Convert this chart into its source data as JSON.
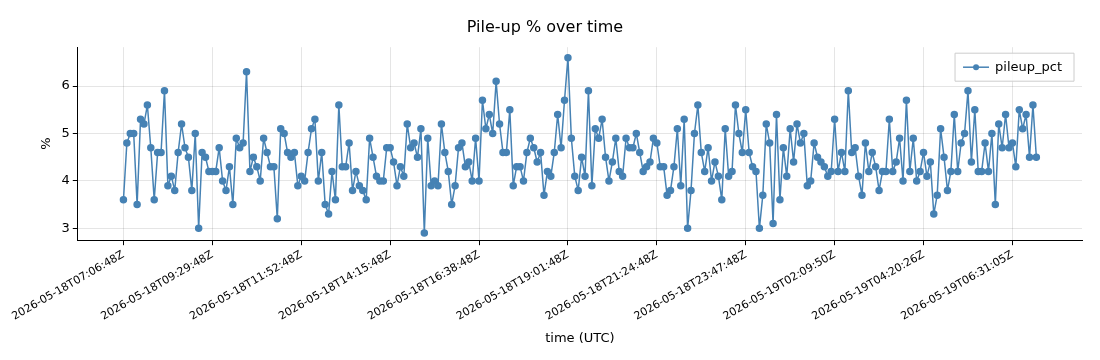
{
  "chart_data": {
    "type": "line",
    "title": "Pile-up % over time",
    "xlabel": "time (UTC)",
    "ylabel": "%",
    "categories": [
      "2026-05-18T07:06:48Z",
      null,
      null,
      null,
      null,
      null,
      null,
      null,
      null,
      null,
      null,
      null,
      null,
      null,
      null,
      null,
      null,
      null,
      null,
      null,
      null,
      null,
      null,
      null,
      null,
      null,
      "2026-05-18T09:29:48Z",
      null,
      null,
      null,
      null,
      null,
      null,
      null,
      null,
      null,
      null,
      null,
      null,
      null,
      null,
      null,
      null,
      null,
      null,
      null,
      null,
      null,
      null,
      null,
      null,
      null,
      "2026-05-18T11:52:48Z",
      null,
      null,
      null,
      null,
      null,
      null,
      null,
      null,
      null,
      null,
      null,
      null,
      null,
      null,
      null,
      null,
      null,
      null,
      null,
      null,
      null,
      null,
      null,
      null,
      null,
      "2026-05-18T14:15:48Z",
      null,
      null,
      null,
      null,
      null,
      null,
      null,
      null,
      null,
      null,
      null,
      null,
      null,
      null,
      null,
      null,
      null,
      null,
      null,
      null,
      null,
      null,
      null,
      null,
      null,
      "2026-05-18T16:38:48Z",
      null,
      null,
      null,
      null,
      null,
      null,
      null,
      null,
      null,
      null,
      null,
      null,
      null,
      null,
      null,
      null,
      null,
      null,
      null,
      null,
      null,
      null,
      null,
      null,
      null,
      "2026-05-18T19:01:48Z",
      null,
      null,
      null,
      null,
      null,
      null,
      null,
      null,
      null,
      null,
      null,
      null,
      null,
      null,
      null,
      null,
      null,
      null,
      null,
      null,
      null,
      null,
      null,
      null,
      null,
      "2026-05-18T21:24:48Z",
      null,
      null,
      null,
      null,
      null,
      null,
      null,
      null,
      null,
      null,
      null,
      null,
      null,
      null,
      null,
      null,
      null,
      null,
      null,
      null,
      null,
      null,
      null,
      null,
      null,
      "2026-05-18T23:47:48Z",
      null,
      null,
      null,
      null,
      null,
      null,
      null,
      null,
      null,
      null,
      null,
      null,
      null,
      null,
      null,
      null,
      null,
      null,
      null,
      null,
      null,
      null,
      null,
      null,
      null,
      "2026-05-19T02:09:50Z",
      null,
      null,
      null,
      null,
      null,
      null,
      null,
      null,
      null,
      null,
      null,
      null,
      null,
      null,
      null,
      null,
      null,
      null,
      null,
      null,
      null,
      null,
      null,
      null,
      null,
      "2026-05-19T04:20:26Z",
      null,
      null,
      null,
      null,
      null,
      null,
      null,
      null,
      null,
      null,
      null,
      null,
      null,
      null,
      null,
      null,
      null,
      null,
      null,
      null,
      null,
      null,
      null,
      null,
      null,
      "2026-05-19T06:31:05Z",
      null,
      null,
      null,
      null,
      null,
      null,
      null
    ],
    "series": [
      {
        "name": "pileup_pct",
        "color": "#4682b4",
        "values": [
          3.6,
          4.8,
          5.0,
          5.0,
          3.5,
          5.3,
          5.2,
          5.6,
          4.7,
          3.6,
          4.6,
          4.6,
          5.9,
          3.9,
          4.1,
          3.8,
          4.6,
          5.2,
          4.7,
          4.5,
          3.8,
          5.0,
          3.0,
          4.6,
          4.5,
          4.2,
          4.2,
          4.2,
          4.7,
          4.0,
          3.8,
          4.3,
          3.5,
          4.9,
          4.7,
          4.8,
          6.3,
          4.2,
          4.5,
          4.3,
          4.0,
          4.9,
          4.6,
          4.3,
          4.3,
          3.2,
          5.1,
          5.0,
          4.6,
          4.5,
          4.6,
          3.9,
          4.1,
          4.0,
          4.6,
          5.1,
          5.3,
          4.0,
          4.6,
          3.5,
          3.3,
          4.2,
          3.6,
          5.6,
          4.3,
          4.3,
          4.8,
          3.8,
          4.2,
          3.9,
          3.8,
          3.6,
          4.9,
          4.5,
          4.1,
          4.0,
          4.0,
          4.7,
          4.7,
          4.4,
          3.9,
          4.3,
          4.1,
          5.2,
          4.7,
          4.8,
          4.5,
          5.1,
          2.9,
          4.9,
          3.9,
          4.0,
          3.9,
          5.2,
          4.6,
          4.2,
          3.5,
          3.9,
          4.7,
          4.8,
          4.3,
          4.4,
          4.0,
          4.9,
          4.0,
          5.7,
          5.1,
          5.4,
          5.0,
          6.1,
          5.2,
          4.6,
          4.6,
          5.5,
          3.9,
          4.3,
          4.3,
          4.0,
          4.6,
          4.9,
          4.7,
          4.4,
          4.6,
          3.7,
          4.2,
          4.1,
          4.6,
          5.4,
          4.7,
          5.7,
          6.6,
          4.9,
          4.1,
          3.8,
          4.5,
          4.1,
          5.9,
          3.9,
          5.1,
          4.9,
          5.3,
          4.5,
          4.0,
          4.4,
          4.9,
          4.2,
          4.1,
          4.9,
          4.7,
          4.7,
          5.0,
          4.6,
          4.2,
          4.3,
          4.4,
          4.9,
          4.8,
          4.3,
          4.3,
          3.7,
          3.8,
          4.3,
          5.1,
          3.9,
          5.3,
          3.0,
          3.8,
          5.0,
          5.6,
          4.6,
          4.2,
          4.7,
          4.0,
          4.4,
          4.1,
          3.6,
          5.1,
          4.1,
          4.2,
          5.6,
          5.0,
          4.6,
          5.5,
          4.6,
          4.3,
          4.2,
          3.0,
          3.7,
          5.2,
          4.8,
          3.1,
          5.4,
          3.6,
          4.7,
          4.1,
          5.1,
          4.4,
          5.2,
          4.8,
          5.0,
          3.9,
          4.0,
          4.8,
          4.5,
          4.4,
          4.3,
          4.1,
          4.2,
          5.3,
          4.2,
          4.6,
          4.2,
          5.9,
          4.6,
          4.7,
          4.1,
          3.7,
          4.8,
          4.2,
          4.6,
          4.3,
          3.8,
          4.2,
          4.2,
          5.3,
          4.2,
          4.4,
          4.9,
          4.0,
          5.7,
          4.2,
          4.9,
          4.0,
          4.2,
          4.6,
          4.1,
          4.4,
          3.3,
          3.7,
          5.1,
          4.5,
          3.8,
          4.2,
          5.4,
          4.2,
          4.8,
          5.0,
          5.9,
          4.4,
          5.5,
          4.2,
          4.2,
          4.8,
          4.2,
          5.0,
          3.5,
          5.2,
          4.7,
          5.4,
          4.7,
          4.8,
          4.3,
          5.5,
          5.1,
          5.4,
          4.5,
          5.6,
          4.5
        ]
      }
    ],
    "ylim": [
      2.75,
      6.82
    ],
    "yticks": [
      3,
      4,
      5,
      6
    ],
    "grid": true,
    "legend": "top right",
    "marker": "circle",
    "line_style": "solid"
  }
}
